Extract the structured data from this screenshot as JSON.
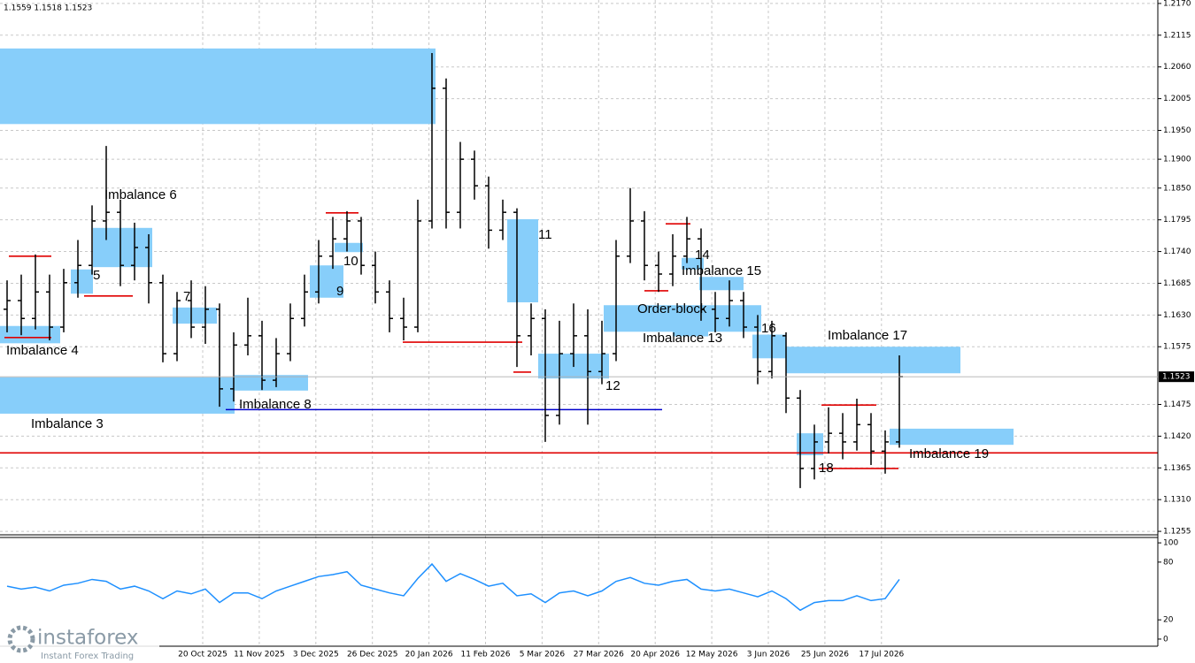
{
  "header": "1.1559 1.1518 1.1523",
  "brand": {
    "name": "instaforex",
    "tagline": "Instant Forex Trading"
  },
  "chart_data": [
    {
      "type": "candlestick",
      "color": "#000000",
      "grid": true,
      "ylim": [
        1.1249,
        1.2176
      ],
      "yticks": [
        {
          "value": 1.217,
          "label": "1.2170"
        },
        1.2115,
        {
          "value": 1.206,
          "label": "1.2060"
        },
        1.2005,
        {
          "value": 1.195,
          "label": "1.1950"
        },
        {
          "value": 1.19,
          "label": "1.1900"
        },
        {
          "value": 1.185,
          "label": "1.1850"
        },
        1.1795,
        {
          "value": 1.174,
          "label": "1.1740"
        },
        1.1685,
        {
          "value": 1.163,
          "label": "1.1630"
        },
        1.1575,
        1.1475,
        {
          "value": 1.142,
          "label": "1.1420"
        },
        1.1365,
        {
          "value": 1.131,
          "label": "1.1310"
        },
        1.1255
      ],
      "last_price": 1.1523,
      "x_labels": [
        "20 Oct 2025",
        "11 Nov 2025",
        "3 Dec 2025",
        "26 Dec 2025",
        "20 Jan 2026",
        "11 Feb 2026",
        "5 Mar 2026",
        "27 Mar 2026",
        "20 Apr 2026",
        "12 May 2026",
        "3 Jun 2026",
        "25 Jun 2026",
        "17 Jul 2026"
      ],
      "values": [
        [
          1.164,
          1.169,
          1.16,
          1.1655
        ],
        [
          1.1655,
          1.17,
          1.1595,
          1.1624
        ],
        [
          1.1624,
          1.1735,
          1.1605,
          1.167
        ],
        [
          1.167,
          1.17,
          1.1586,
          1.1609
        ],
        [
          1.1609,
          1.171,
          1.16,
          1.1686
        ],
        [
          1.1686,
          1.176,
          1.166,
          1.1716
        ],
        [
          1.1716,
          1.182,
          1.17,
          1.1793
        ],
        [
          1.1793,
          1.1923,
          1.176,
          1.1808
        ],
        [
          1.1808,
          1.183,
          1.168,
          1.1716
        ],
        [
          1.1716,
          1.179,
          1.169,
          1.1747
        ],
        [
          1.1747,
          1.177,
          1.165,
          1.1686
        ],
        [
          1.1686,
          1.17,
          1.1548,
          1.1563
        ],
        [
          1.1563,
          1.167,
          1.155,
          1.1655
        ],
        [
          1.1655,
          1.169,
          1.159,
          1.1609
        ],
        [
          1.1609,
          1.168,
          1.158,
          1.164
        ],
        [
          1.164,
          1.165,
          1.1471,
          1.1502
        ],
        [
          1.1502,
          1.16,
          1.148,
          1.1578
        ],
        [
          1.1578,
          1.166,
          1.156,
          1.1594
        ],
        [
          1.1594,
          1.162,
          1.15,
          1.1517
        ],
        [
          1.1517,
          1.159,
          1.1505,
          1.1563
        ],
        [
          1.1563,
          1.165,
          1.155,
          1.1624
        ],
        [
          1.1624,
          1.17,
          1.161,
          1.167
        ],
        [
          1.167,
          1.176,
          1.165,
          1.1732
        ],
        [
          1.1732,
          1.18,
          1.171,
          1.1762
        ],
        [
          1.1762,
          1.181,
          1.174,
          1.1793
        ],
        [
          1.1793,
          1.18,
          1.17,
          1.1716
        ],
        [
          1.1716,
          1.174,
          1.165,
          1.167
        ],
        [
          1.167,
          1.169,
          1.16,
          1.1624
        ],
        [
          1.1624,
          1.166,
          1.1586,
          1.1609
        ],
        [
          1.1609,
          1.183,
          1.16,
          1.1793
        ],
        [
          1.1793,
          1.2084,
          1.178,
          1.2023
        ],
        [
          1.2023,
          1.204,
          1.178,
          1.1808
        ],
        [
          1.1808,
          1.193,
          1.178,
          1.19
        ],
        [
          1.19,
          1.1915,
          1.183,
          1.1854
        ],
        [
          1.1854,
          1.187,
          1.1745,
          1.1777
        ],
        [
          1.1777,
          1.183,
          1.176,
          1.1808
        ],
        [
          1.1808,
          1.1815,
          1.154,
          1.1594
        ],
        [
          1.1594,
          1.165,
          1.156,
          1.1624
        ],
        [
          1.1624,
          1.164,
          1.141,
          1.1456
        ],
        [
          1.1456,
          1.162,
          1.144,
          1.1563
        ],
        [
          1.1563,
          1.165,
          1.154,
          1.1594
        ],
        [
          1.1594,
          1.164,
          1.144,
          1.1532
        ],
        [
          1.1532,
          1.162,
          1.151,
          1.1563
        ],
        [
          1.1563,
          1.176,
          1.155,
          1.1732
        ],
        [
          1.1732,
          1.185,
          1.172,
          1.1793
        ],
        [
          1.1793,
          1.181,
          1.169,
          1.1716
        ],
        [
          1.1716,
          1.174,
          1.167,
          1.1701
        ],
        [
          1.1701,
          1.177,
          1.168,
          1.1732
        ],
        [
          1.1732,
          1.18,
          1.172,
          1.1762
        ],
        [
          1.1762,
          1.178,
          1.162,
          1.164
        ],
        [
          1.164,
          1.167,
          1.16,
          1.1624
        ],
        [
          1.1624,
          1.169,
          1.161,
          1.1655
        ],
        [
          1.1655,
          1.167,
          1.159,
          1.1609
        ],
        [
          1.1609,
          1.163,
          1.151,
          1.1532
        ],
        [
          1.1532,
          1.162,
          1.152,
          1.1594
        ],
        [
          1.1594,
          1.16,
          1.146,
          1.1486
        ],
        [
          1.1486,
          1.15,
          1.133,
          1.1364
        ],
        [
          1.1364,
          1.144,
          1.1345,
          1.141
        ],
        [
          1.141,
          1.147,
          1.139,
          1.1425
        ],
        [
          1.1425,
          1.146,
          1.138,
          1.141
        ],
        [
          1.141,
          1.1485,
          1.1395,
          1.144
        ],
        [
          1.144,
          1.146,
          1.137,
          1.1394
        ],
        [
          1.1394,
          1.143,
          1.1355,
          1.141
        ],
        [
          1.141,
          1.156,
          1.14,
          1.1523
        ]
      ],
      "zone_color": "#87cefa",
      "zones": [
        {
          "high": 1.2092,
          "low": 1.1961
        },
        {
          "label": "Imbalance 3",
          "high": 1.1522,
          "low": 1.1459
        },
        {
          "label": "Imbalance 4",
          "high": 1.1611,
          "low": 1.1581
        },
        {
          "label": "5",
          "high": 1.1709,
          "low": 1.1667
        },
        {
          "label": "Imbalance 6",
          "high": 1.1781,
          "low": 1.1713
        },
        {
          "label": "7",
          "high": 1.1643,
          "low": 1.1615
        },
        {
          "label": "Imbalance 8",
          "high": 1.1526,
          "low": 1.1499
        },
        {
          "label": "9",
          "high": 1.1716,
          "low": 1.166
        },
        {
          "label": "10",
          "high": 1.1755,
          "low": 1.1739
        },
        {
          "label": "11",
          "high": 1.1796,
          "low": 1.1652
        },
        {
          "label": "12",
          "high": 1.1563,
          "low": 1.152
        },
        {
          "label": "Order-block",
          "high": 1.1647,
          "low": 1.1601
        },
        {
          "label": "Imbalance 13",
          "high": 1.1624,
          "low": 1.1593
        },
        {
          "label": "14",
          "high": 1.1729,
          "low": 1.1709
        },
        {
          "label": "Imbalance 15",
          "high": 1.1696,
          "low": 1.1673
        },
        {
          "label": "16",
          "high": 1.1596,
          "low": 1.1555
        },
        {
          "label": "Imbalance 17",
          "high": 1.1575,
          "low": 1.1529
        },
        {
          "label": "18",
          "high": 1.1425,
          "low": 1.1387
        },
        {
          "label": "Imbalance 19",
          "high": 1.1433,
          "low": 1.1405
        }
      ],
      "levels": [
        {
          "value": 1.1391,
          "color": "#e00000"
        },
        {
          "value": 1.1466,
          "color": "#0000cc"
        },
        {
          "value": 1.1732,
          "color": "#e00000"
        },
        {
          "value": 1.1591,
          "color": "#e00000"
        },
        {
          "value": 1.1663,
          "color": "#e00000"
        },
        {
          "value": 1.1807,
          "color": "#e00000"
        },
        {
          "value": 1.1583,
          "color": "#e00000"
        },
        {
          "value": 1.1531,
          "color": "#e00000"
        },
        {
          "value": 1.1788,
          "color": "#e00000"
        },
        {
          "value": 1.1672,
          "color": "#e00000"
        },
        {
          "value": 1.1474,
          "color": "#e00000"
        },
        {
          "value": 1.1364,
          "color": "#e00000"
        }
      ]
    },
    {
      "type": "line",
      "color": "#1e90ff",
      "ylim": [
        -7.4,
        105.6
      ],
      "yticks": [
        0,
        20,
        80,
        100
      ],
      "values": [
        55,
        52,
        54,
        50,
        56,
        58,
        62,
        60,
        52,
        55,
        50,
        42,
        50,
        47,
        52,
        38,
        48,
        48,
        42,
        50,
        55,
        60,
        65,
        67,
        70,
        56,
        52,
        48,
        45,
        63,
        78,
        60,
        68,
        62,
        55,
        58,
        45,
        47,
        38,
        48,
        50,
        45,
        50,
        60,
        64,
        58,
        56,
        60,
        62,
        52,
        50,
        52,
        48,
        44,
        50,
        42,
        30,
        38,
        40,
        40,
        45,
        40,
        42,
        62
      ]
    }
  ]
}
